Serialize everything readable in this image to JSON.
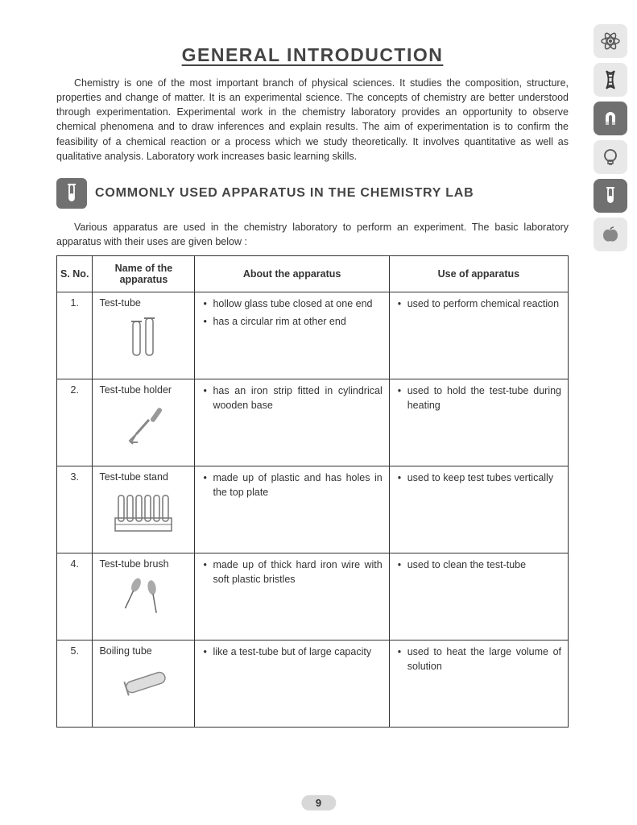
{
  "title": "GENERAL INTRODUCTION",
  "intro": "Chemistry is one of the most important branch of physical sciences. It studies the composition, structure, properties and change of matter. It is an experimental science. The concepts of chemistry are better understood through experimentation. Experimental work in the chemistry laboratory provides an opportunity to observe chemical phenomena and to draw inferences and explain results. The aim of experimentation is to confirm the feasibility of a chemical reaction or a process which we study theoretically. It involves quantitative as well as qualitative analysis. Laboratory work increases basic learning skills.",
  "section_title": "COMMONLY USED APPARATUS IN THE CHEMISTRY LAB",
  "sub_text": "Various apparatus are used in the chemistry laboratory to perform an experiment. The basic laboratory apparatus with their uses are given below :",
  "table": {
    "headers": [
      "S. No.",
      "Name of the apparatus",
      "About the apparatus",
      "Use of apparatus"
    ],
    "rows": [
      {
        "sno": "1.",
        "name": "Test-tube",
        "about": [
          "hollow glass tube closed at one end",
          "has a circular rim at other end"
        ],
        "use": [
          "used to perform chemical reaction"
        ]
      },
      {
        "sno": "2.",
        "name": "Test-tube holder",
        "about": [
          "has an iron strip fitted in cylindrical wooden base"
        ],
        "use": [
          "used to hold the test-tube during heating"
        ]
      },
      {
        "sno": "3.",
        "name": "Test-tube stand",
        "about": [
          "made up of plastic and has holes in the top plate"
        ],
        "use": [
          "used to keep test tubes vertically"
        ]
      },
      {
        "sno": "4.",
        "name": "Test-tube brush",
        "about": [
          "made up of thick hard iron wire with soft plastic bristles"
        ],
        "use": [
          "used to clean the test-tube"
        ]
      },
      {
        "sno": "5.",
        "name": "Boiling tube",
        "about": [
          "like a test-tube but of large capacity"
        ],
        "use": [
          "used to heat the large volume of solution"
        ]
      }
    ]
  },
  "page_number": "9",
  "side_icons": [
    "atom",
    "dna",
    "magnet",
    "bulb",
    "test-tube",
    "apple"
  ],
  "colors": {
    "text": "#333333",
    "heading": "#444444",
    "border": "#333333",
    "icon_light_bg": "#e8e8e8",
    "icon_dark_bg": "#707070",
    "page_num_bg": "#d8d8d8"
  }
}
